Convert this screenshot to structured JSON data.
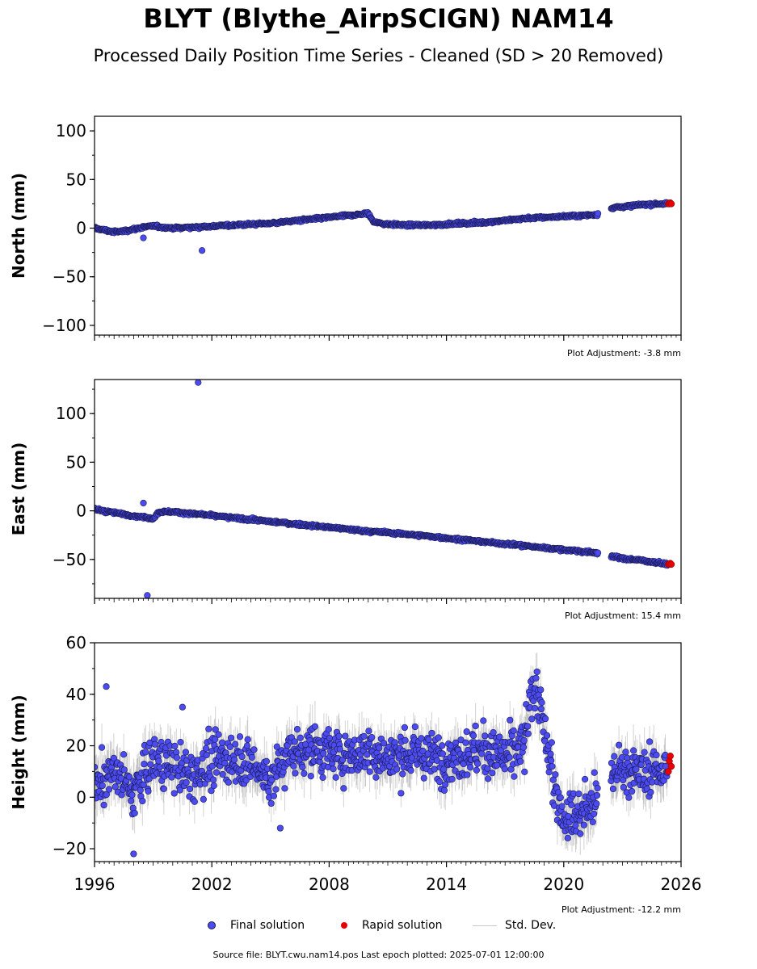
{
  "title": "BLYT (Blythe_AirpSCIGN) NAM14",
  "subtitle": "Processed Daily Position Time Series - Cleaned (SD > 20 Removed)",
  "legend": {
    "final": "Final solution",
    "rapid": "Rapid solution",
    "std": "Std. Dev."
  },
  "footer": "Source file: BLYT.cwu.nam14.pos  Last epoch plotted: 2025-07-01 12:00:00",
  "colors": {
    "final": "#4b4bef",
    "final_edge": "#1a1a55",
    "rapid": "#e60000",
    "std": "#808080"
  },
  "chart_data": [
    {
      "type": "scatter",
      "ylabel": "North (mm)",
      "adjustment": "Plot Adjustment: -3.8 mm",
      "xlim": [
        1996,
        2026
      ],
      "ylim": [
        -110,
        115
      ],
      "yticks": [
        -100,
        -50,
        0,
        50,
        100
      ],
      "xticks": [
        1996,
        2002,
        2008,
        2014,
        2020,
        2026
      ],
      "show_xticklabels": false,
      "series": [
        {
          "name": "Final solution",
          "x": [
            1996.0,
            1996.5,
            1997.0,
            1997.5,
            1998.0,
            1998.5,
            1999.0,
            2000.0,
            2001.0,
            2002.0,
            2003.0,
            2004.0,
            2005.0,
            2006.0,
            2007.0,
            2008.0,
            2009.0,
            2010.0,
            2010.3,
            2011.0,
            2012.0,
            2013.0,
            2014.0,
            2015.0,
            2016.0,
            2017.0,
            2018.0,
            2019.0,
            2020.0,
            2021.0,
            2021.7,
            2022.5,
            2023.0,
            2024.0,
            2025.0,
            2025.3
          ],
          "y": [
            0,
            -2,
            -4,
            -3,
            -1,
            1,
            2,
            0,
            1,
            2,
            3,
            4,
            5,
            7,
            9,
            11,
            13,
            15,
            6,
            4,
            3,
            3,
            4,
            5,
            6,
            8,
            10,
            11,
            12,
            13,
            14,
            21,
            22,
            24,
            25,
            25
          ]
        },
        {
          "name": "Rapid solution",
          "x": [
            2025.35,
            2025.4,
            2025.45,
            2025.5
          ],
          "y": [
            25,
            25,
            26,
            25
          ]
        }
      ],
      "outliers": [
        {
          "x": 2001.5,
          "y": -23
        },
        {
          "x": 1998.5,
          "y": -10
        }
      ]
    },
    {
      "type": "scatter",
      "ylabel": "East (mm)",
      "adjustment": "Plot Adjustment: 15.4 mm",
      "xlim": [
        1996,
        2026
      ],
      "ylim": [
        -90,
        135
      ],
      "yticks": [
        -50,
        0,
        50,
        100
      ],
      "xticks": [
        1996,
        2002,
        2008,
        2014,
        2020,
        2026
      ],
      "show_xticklabels": false,
      "series": [
        {
          "name": "Final solution",
          "x": [
            1996.0,
            1997.0,
            1998.0,
            1999.0,
            1999.3,
            2000.0,
            2002.0,
            2004.0,
            2006.0,
            2008.0,
            2010.0,
            2012.0,
            2014.0,
            2016.0,
            2018.0,
            2019.0,
            2020.0,
            2021.0,
            2021.7,
            2022.5,
            2023.0,
            2024.0,
            2025.0,
            2025.3
          ],
          "y": [
            2,
            -2,
            -5,
            -8,
            -1,
            -1,
            -5,
            -9,
            -13,
            -17,
            -21,
            -24,
            -28,
            -32,
            -36,
            -38,
            -40,
            -42,
            -43,
            -47,
            -49,
            -51,
            -54,
            -55
          ]
        },
        {
          "name": "Rapid solution",
          "x": [
            2025.35,
            2025.4,
            2025.45,
            2025.5
          ],
          "y": [
            -55,
            -55,
            -54,
            -55
          ]
        }
      ],
      "outliers": [
        {
          "x": 2001.3,
          "y": 132
        },
        {
          "x": 1998.7,
          "y": -87
        },
        {
          "x": 1998.5,
          "y": 8
        }
      ]
    },
    {
      "type": "scatter",
      "ylabel": "Height (mm)",
      "adjustment": "Plot Adjustment: -12.2 mm",
      "xlim": [
        1996,
        2026
      ],
      "ylim": [
        -25,
        60
      ],
      "yticks": [
        -20,
        0,
        20,
        40,
        60
      ],
      "xticks": [
        1996,
        2002,
        2008,
        2014,
        2020,
        2026
      ],
      "xticklabels": [
        "1996",
        "2002",
        "2008",
        "2014",
        "2020",
        "2026"
      ],
      "show_xticklabels": true,
      "series": [
        {
          "name": "Final solution",
          "x": [
            1996.0,
            1997.0,
            1998.0,
            1999.0,
            2000.0,
            2001.0,
            2002.0,
            2003.0,
            2004.0,
            2005.0,
            2006.0,
            2007.0,
            2008.0,
            2009.0,
            2010.0,
            2011.0,
            2012.0,
            2013.0,
            2014.0,
            2015.0,
            2016.0,
            2017.0,
            2018.0,
            2018.5,
            2019.0,
            2019.5,
            2020.0,
            2021.0,
            2021.7,
            2022.5,
            2023.0,
            2024.0,
            2025.0,
            2025.3
          ],
          "y": [
            5,
            10,
            2,
            15,
            12,
            8,
            14,
            16,
            13,
            6,
            18,
            19,
            17,
            16,
            18,
            15,
            17,
            16,
            15,
            17,
            18,
            16,
            20,
            45,
            25,
            5,
            -8,
            -5,
            0,
            10,
            12,
            9,
            11,
            10
          ]
        },
        {
          "name": "Rapid solution",
          "x": [
            2025.35,
            2025.4,
            2025.45,
            2025.5
          ],
          "y": [
            10,
            14,
            16,
            12
          ]
        }
      ],
      "outliers": [
        {
          "x": 1996.6,
          "y": 43
        },
        {
          "x": 2000.5,
          "y": 35
        },
        {
          "x": 1998.0,
          "y": -22
        },
        {
          "x": 2005.5,
          "y": -12
        }
      ]
    }
  ]
}
